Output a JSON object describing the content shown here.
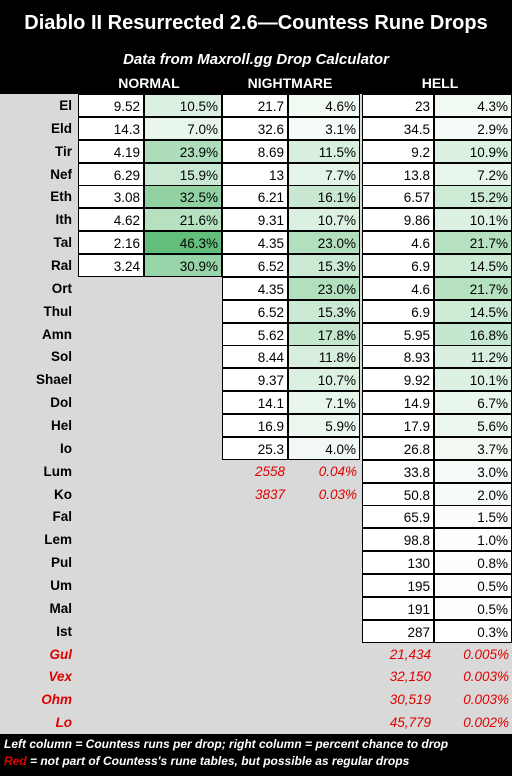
{
  "title": "Diablo II Resurrected 2.6—Countess Rune Drops",
  "subtitle": "Data from Maxroll.gg Drop Calculator",
  "columns": [
    "NORMAL",
    "NIGHTMARE",
    "HELL"
  ],
  "rows": [
    {
      "rune": "El",
      "normal": [
        "9.52",
        "10.5%",
        0.105
      ],
      "nightmare": [
        "21.7",
        "4.6%",
        0.046
      ],
      "hell": [
        "23",
        "4.3%",
        0.043
      ]
    },
    {
      "rune": "Eld",
      "normal": [
        "14.3",
        "7.0%",
        0.07
      ],
      "nightmare": [
        "32.6",
        "3.1%",
        0.031
      ],
      "hell": [
        "34.5",
        "2.9%",
        0.029
      ]
    },
    {
      "rune": "Tir",
      "normal": [
        "4.19",
        "23.9%",
        0.239
      ],
      "nightmare": [
        "8.69",
        "11.5%",
        0.115
      ],
      "hell": [
        "9.2",
        "10.9%",
        0.109
      ]
    },
    {
      "rune": "Nef",
      "normal": [
        "6.29",
        "15.9%",
        0.159
      ],
      "nightmare": [
        "13",
        "7.7%",
        0.077
      ],
      "hell": [
        "13.8",
        "7.2%",
        0.072
      ]
    },
    {
      "rune": "Eth",
      "normal": [
        "3.08",
        "32.5%",
        0.325
      ],
      "nightmare": [
        "6.21",
        "16.1%",
        0.161
      ],
      "hell": [
        "6.57",
        "15.2%",
        0.152
      ]
    },
    {
      "rune": "Ith",
      "normal": [
        "4.62",
        "21.6%",
        0.216
      ],
      "nightmare": [
        "9.31",
        "10.7%",
        0.107
      ],
      "hell": [
        "9.86",
        "10.1%",
        0.101
      ]
    },
    {
      "rune": "Tal",
      "normal": [
        "2.16",
        "46.3%",
        0.463
      ],
      "nightmare": [
        "4.35",
        "23.0%",
        0.23
      ],
      "hell": [
        "4.6",
        "21.7%",
        0.217
      ]
    },
    {
      "rune": "Ral",
      "normal": [
        "3.24",
        "30.9%",
        0.309
      ],
      "nightmare": [
        "6.52",
        "15.3%",
        0.153
      ],
      "hell": [
        "6.9",
        "14.5%",
        0.145
      ]
    },
    {
      "rune": "Ort",
      "nightmare": [
        "4.35",
        "23.0%",
        0.23
      ],
      "hell": [
        "4.6",
        "21.7%",
        0.217
      ]
    },
    {
      "rune": "Thul",
      "nightmare": [
        "6.52",
        "15.3%",
        0.153
      ],
      "hell": [
        "6.9",
        "14.5%",
        0.145
      ]
    },
    {
      "rune": "Amn",
      "nightmare": [
        "5.62",
        "17.8%",
        0.178
      ],
      "hell": [
        "5.95",
        "16.8%",
        0.168
      ]
    },
    {
      "rune": "Sol",
      "nightmare": [
        "8.44",
        "11.8%",
        0.118
      ],
      "hell": [
        "8.93",
        "11.2%",
        0.112
      ]
    },
    {
      "rune": "Shael",
      "nightmare": [
        "9.37",
        "10.7%",
        0.107
      ],
      "hell": [
        "9.92",
        "10.1%",
        0.101
      ]
    },
    {
      "rune": "Dol",
      "nightmare": [
        "14.1",
        "7.1%",
        0.071
      ],
      "hell": [
        "14.9",
        "6.7%",
        0.067
      ]
    },
    {
      "rune": "Hel",
      "nightmare": [
        "16.9",
        "5.9%",
        0.059
      ],
      "hell": [
        "17.9",
        "5.6%",
        0.056
      ]
    },
    {
      "rune": "Io",
      "nightmare": [
        "25.3",
        "4.0%",
        0.04
      ],
      "hell": [
        "26.8",
        "3.7%",
        0.037
      ]
    },
    {
      "rune": "Lum",
      "nightmare": [
        "2558",
        "0.04%",
        0
      ],
      "nightmare_red": true,
      "hell": [
        "33.8",
        "3.0%",
        0.03
      ]
    },
    {
      "rune": "Ko",
      "nightmare": [
        "3837",
        "0.03%",
        0
      ],
      "nightmare_red": true,
      "hell": [
        "50.8",
        "2.0%",
        0.02
      ]
    },
    {
      "rune": "Fal",
      "hell": [
        "65.9",
        "1.5%",
        0.015
      ]
    },
    {
      "rune": "Lem",
      "hell": [
        "98.8",
        "1.0%",
        0.01
      ]
    },
    {
      "rune": "Pul",
      "hell": [
        "130",
        "0.8%",
        0.008
      ]
    },
    {
      "rune": "Um",
      "hell": [
        "195",
        "0.5%",
        0.005
      ]
    },
    {
      "rune": "Mal",
      "hell": [
        "191",
        "0.5%",
        0.005
      ]
    },
    {
      "rune": "Ist",
      "hell": [
        "287",
        "0.3%",
        0.003
      ]
    },
    {
      "rune": "Gul",
      "hell": [
        "21,434",
        "0.005%",
        0
      ],
      "hell_red": true,
      "rune_red": true
    },
    {
      "rune": "Vex",
      "hell": [
        "32,150",
        "0.003%",
        0
      ],
      "hell_red": true,
      "rune_red": true
    },
    {
      "rune": "Ohm",
      "hell": [
        "30,519",
        "0.003%",
        0
      ],
      "hell_red": true,
      "rune_red": true
    },
    {
      "rune": "Lo",
      "hell": [
        "45,779",
        "0.002%",
        0
      ],
      "hell_red": true,
      "rune_red": true
    }
  ],
  "footer": {
    "line1": "Left column = Countess runs per drop; right column = percent chance to drop",
    "line2_red": "Red",
    "line2_rest": " = not part of Countess's rune tables, but possible as regular drops"
  },
  "colors": {
    "heat_max": "#63be7b",
    "heat_min": "#ffffff",
    "red_text": "#e00000"
  }
}
